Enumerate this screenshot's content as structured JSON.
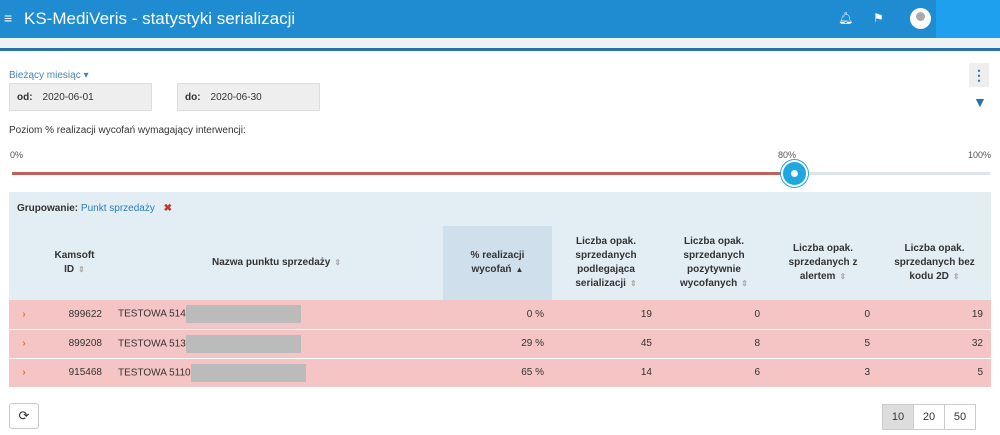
{
  "header": {
    "title": "KS-MediVeris - statystyki serializacji"
  },
  "filters": {
    "preset": "Bieżący miesiąc",
    "from_label": "od:",
    "from": "2020-06-01",
    "to_label": "do:",
    "to": "2020-06-30"
  },
  "slider": {
    "label": "Poziom % realizacji wycofań wymagający interwencji:",
    "min_label": "0%",
    "value_label": "80%",
    "max_label": "100%",
    "value": 80
  },
  "grouping": {
    "label": "Grupowanie:",
    "value": "Punkt sprzedaży"
  },
  "table": {
    "headers": [
      "Kamsoft ID",
      "Nazwa punktu sprzedaży",
      "% realizacji wycofań",
      "Liczba opak. sprzedanych podlegająca serializacji",
      "Liczba opak. sprzedanych pozytywnie wycofanych",
      "Liczba opak. sprzedanych z alertem",
      "Liczba opak. sprzedanych bez kodu 2D"
    ],
    "rows": [
      {
        "id": "899622",
        "name": "TESTOWA 514",
        "pct": "0 %",
        "c1": "19",
        "c2": "0",
        "c3": "0",
        "c4": "19"
      },
      {
        "id": "899208",
        "name": "TESTOWA 513",
        "pct": "29 %",
        "c1": "45",
        "c2": "8",
        "c3": "5",
        "c4": "32"
      },
      {
        "id": "915468",
        "name": "TESTOWA 5110",
        "pct": "65 %",
        "c1": "14",
        "c2": "6",
        "c3": "3",
        "c4": "5"
      }
    ]
  },
  "pagination": {
    "sizes": [
      "10",
      "20",
      "50"
    ],
    "active": "10"
  }
}
